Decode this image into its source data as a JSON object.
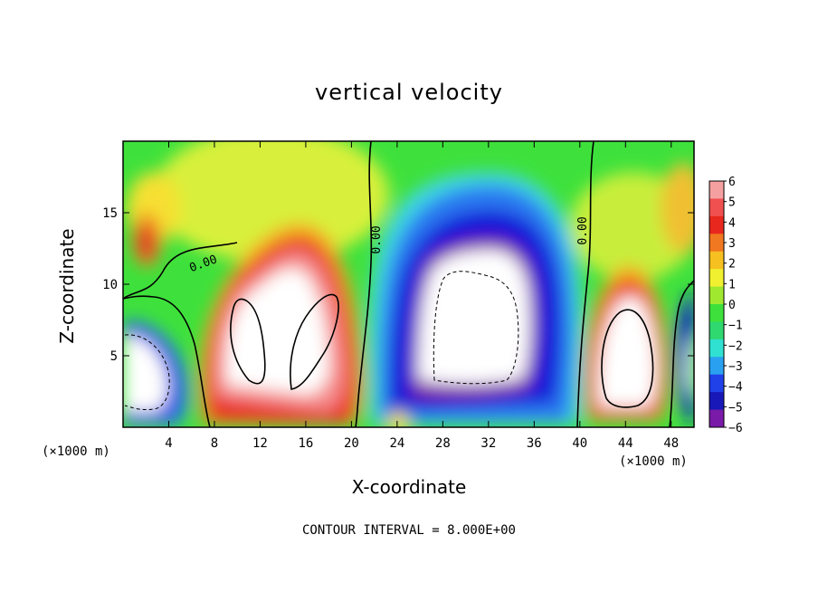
{
  "chart_data": {
    "type": "heatmap",
    "title": "vertical velocity",
    "xlabel": "X-coordinate",
    "ylabel": "Z-coordinate",
    "x_unit": "(×1000 m)",
    "footer": "CONTOUR INTERVAL = 8.000E+00",
    "xlim": [
      0,
      50
    ],
    "ylim": [
      0,
      20
    ],
    "x_ticks": [
      4,
      8,
      12,
      16,
      20,
      24,
      28,
      32,
      36,
      40,
      44,
      48
    ],
    "y_ticks": [
      5,
      10,
      15
    ],
    "colorbar": {
      "ticks": [
        "6",
        "5",
        "4",
        "3",
        "2",
        "1",
        "0",
        "−1",
        "−2",
        "−3",
        "−4",
        "−5",
        "−6"
      ],
      "min": -6,
      "max": 6
    },
    "contour_labels": [
      "0.00",
      "0.00",
      "0.00"
    ],
    "features": [
      {
        "kind": "updraft",
        "x_center": 14,
        "z_center": 8,
        "peak": 8
      },
      {
        "kind": "updraft",
        "x_center": 44,
        "z_center": 6,
        "peak": 8
      },
      {
        "kind": "downdraft",
        "x_center": 31,
        "z_center": 9,
        "peak": -8
      },
      {
        "kind": "downdraft",
        "x_center": 1.5,
        "z_center": 4.5,
        "peak": -8
      }
    ]
  }
}
